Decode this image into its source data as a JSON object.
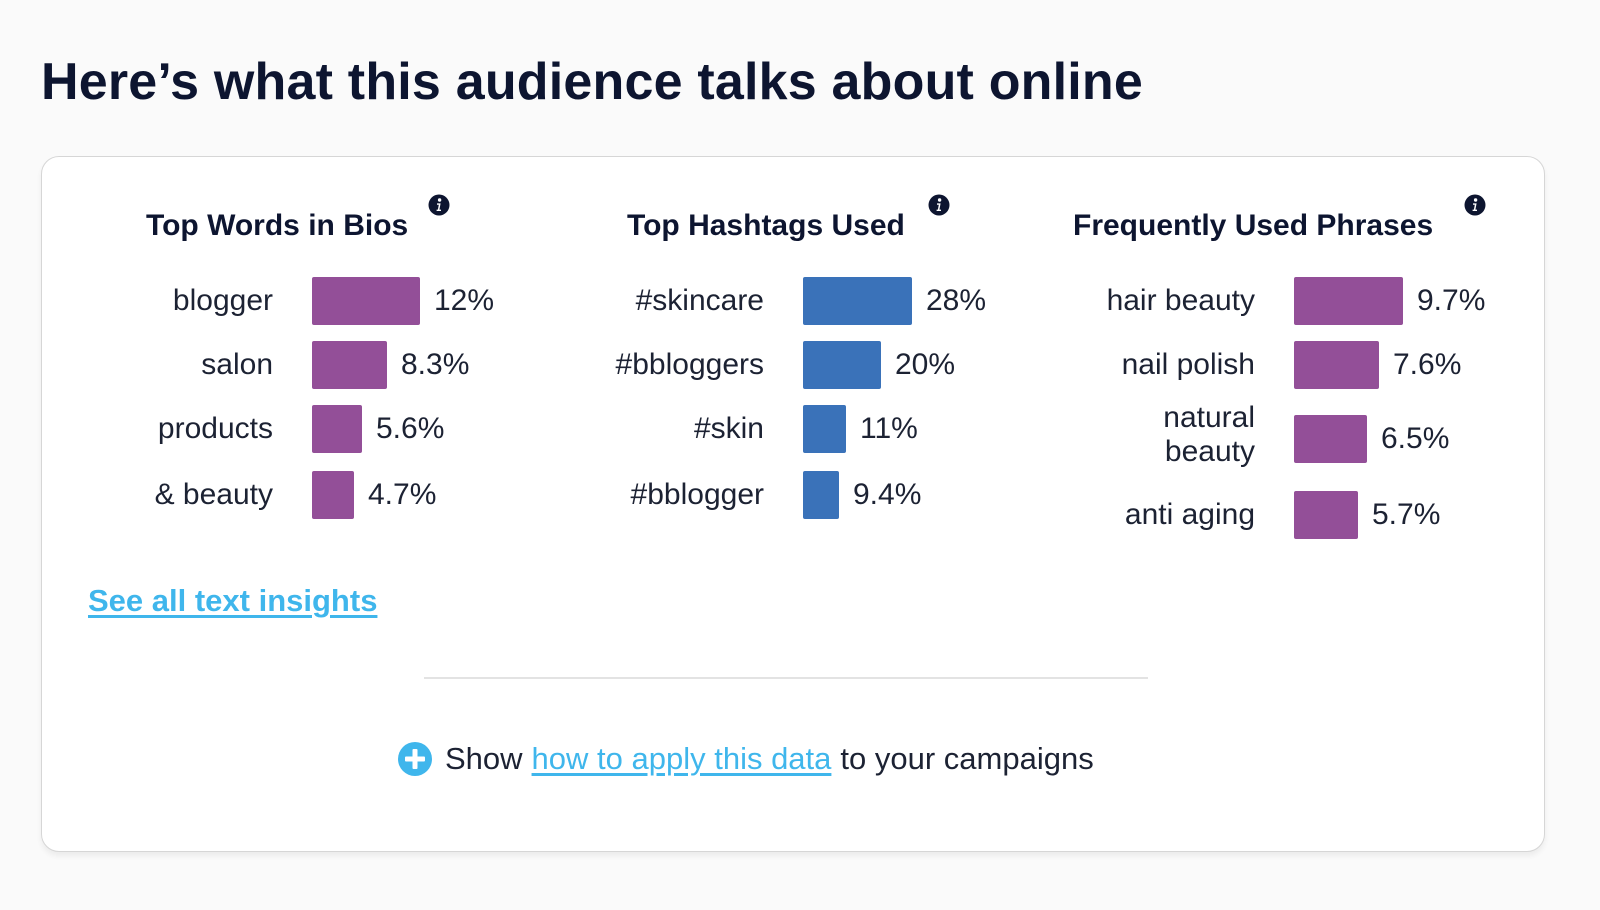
{
  "page": {
    "title": "Here’s what this audience talks about online"
  },
  "colors": {
    "purple": "#934f98",
    "blue": "#3a72b9",
    "link": "#3fb6ec",
    "title": "#0d1530",
    "text": "#1c2233"
  },
  "icons": {
    "info": "info-icon",
    "plus": "plus-circle-icon"
  },
  "chart_data": [
    {
      "type": "bar",
      "title": "Top Words in Bios",
      "categories": [
        "blogger",
        "salon",
        "products",
        "& beauty"
      ],
      "values": [
        12,
        8.3,
        5.6,
        4.7
      ],
      "value_labels": [
        "12%",
        "8.3%",
        "5.6%",
        "4.7%"
      ],
      "unit": "%",
      "color": "#934f98"
    },
    {
      "type": "bar",
      "title": "Top Hashtags Used",
      "categories": [
        "#skincare",
        "#bbloggers",
        "#skin",
        "#bblogger"
      ],
      "values": [
        28,
        20,
        11,
        9.4
      ],
      "value_labels": [
        "28%",
        "20%",
        "11%",
        "9.4%"
      ],
      "unit": "%",
      "color": "#3a72b9"
    },
    {
      "type": "bar",
      "title": "Frequently Used Phrases",
      "categories": [
        "hair beauty",
        "nail polish",
        "natural beauty",
        "anti aging"
      ],
      "values": [
        9.7,
        7.6,
        6.5,
        5.7
      ],
      "value_labels": [
        "9.7%",
        "7.6%",
        "6.5%",
        "5.7%"
      ],
      "unit": "%",
      "color": "#934f98"
    }
  ],
  "footer": {
    "see_all_label": "See all text insights",
    "show_prefix": "Show",
    "apply_link_label": "how to apply this data",
    "show_suffix": "to your campaigns"
  }
}
